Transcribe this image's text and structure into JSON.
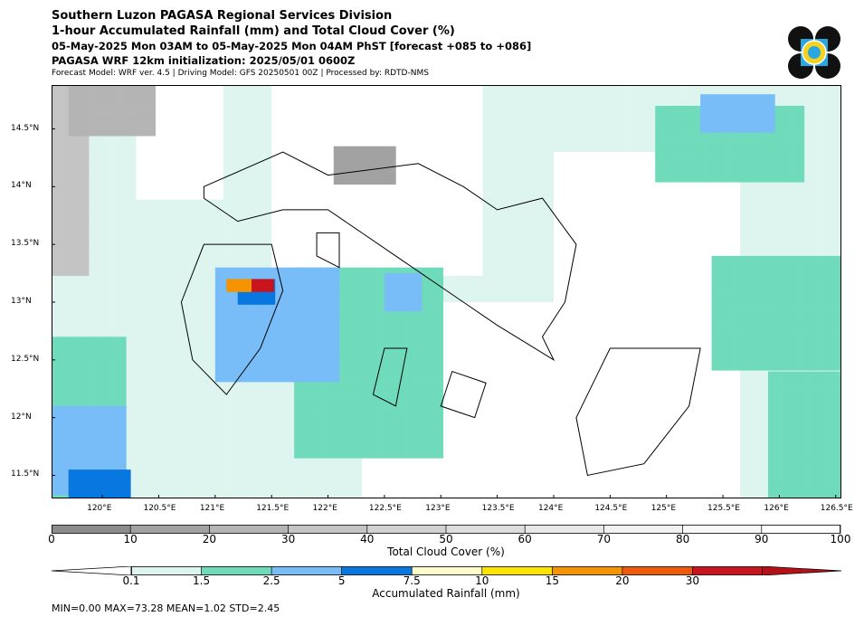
{
  "header": {
    "line1": "Southern Luzon PAGASA Regional Services Division",
    "line2": "1-hour Accumulated Rainfall (mm) and Total Cloud Cover (%)",
    "line3": "05-May-2025 Mon 03AM to 05-May-2025 Mon 04AM PhST [forecast +085 to +086]",
    "line4": "PAGASA WRF 12km initialization: 2025/05/01 0600Z",
    "line5": "Forecast Model: WRF ver. 4.5 | Driving Model: GFS 20250501 00Z | Processed by: RDTD-NMS"
  },
  "map": {
    "lon_range": [
      119.55,
      126.55
    ],
    "lat_range": [
      11.3,
      14.88
    ],
    "x_ticks": [
      "120°E",
      "120.5°E",
      "121°E",
      "121.5°E",
      "122°E",
      "122.5°E",
      "123°E",
      "123.5°E",
      "124°E",
      "124.5°E",
      "125°E",
      "125.5°E",
      "126°E",
      "126.5°E"
    ],
    "x_tick_values": [
      120,
      120.5,
      121,
      121.5,
      122,
      122.5,
      123,
      123.5,
      124,
      124.5,
      125,
      125.5,
      126,
      126.5
    ],
    "y_ticks": [
      "14.5°N",
      "14°N",
      "13.5°N",
      "13°N",
      "12.5°N",
      "12°N",
      "11.5°N"
    ],
    "y_tick_values": [
      14.5,
      14,
      13.5,
      13,
      12.5,
      12,
      11.5
    ]
  },
  "cloud_colorbar": {
    "ticks": [
      "0",
      "10",
      "20",
      "30",
      "40",
      "50",
      "60",
      "70",
      "80",
      "90",
      "100"
    ],
    "colors": [
      "#8c8c8c",
      "#a2a2a2",
      "#b4b4b4",
      "#c4c4c4",
      "#d2d2d2",
      "#dedede",
      "#e8e8e8",
      "#f1f1f1",
      "#f8f8f8",
      "#ffffff"
    ],
    "label": "Total Cloud Cover (%)"
  },
  "rain_colorbar": {
    "ticks": [
      "0.1",
      "1.5",
      "2.5",
      "5",
      "7.5",
      "10",
      "15",
      "20",
      "30"
    ],
    "colors": [
      "#ddf5ee",
      "#6fdbbb",
      "#78bdf7",
      "#0878e0",
      "#fffccc",
      "#fde300",
      "#f59400",
      "#ee5a0a",
      "#c8141c"
    ],
    "label": "Accumulated Rainfall (mm)"
  },
  "stats": "MIN=0.00   MAX=73.28   MEAN=1.02   STD=2.45"
}
